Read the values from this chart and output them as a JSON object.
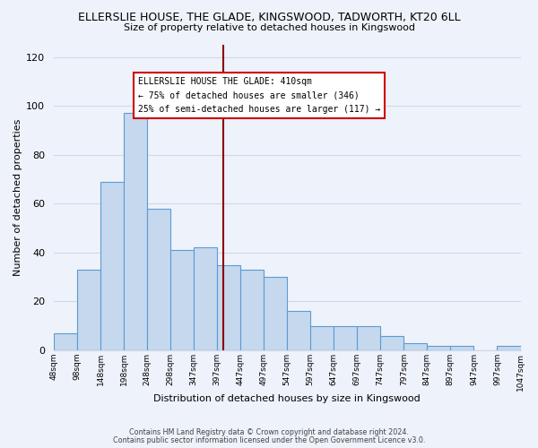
{
  "title": "ELLERSLIE HOUSE, THE GLADE, KINGSWOOD, TADWORTH, KT20 6LL",
  "subtitle": "Size of property relative to detached houses in Kingswood",
  "xlabel": "Distribution of detached houses by size in Kingswood",
  "ylabel": "Number of detached properties",
  "bar_values": [
    7,
    33,
    69,
    97,
    58,
    41,
    42,
    35,
    33,
    30,
    16,
    10,
    10,
    10,
    6,
    3,
    2,
    2,
    0,
    2
  ],
  "bin_edges": [
    48,
    98,
    148,
    198,
    248,
    298,
    347,
    397,
    447,
    497,
    547,
    597,
    647,
    697,
    747,
    797,
    847,
    897,
    947,
    997,
    1047
  ],
  "bin_labels": [
    "48sqm",
    "98sqm",
    "148sqm",
    "198sqm",
    "248sqm",
    "298sqm",
    "347sqm",
    "397sqm",
    "447sqm",
    "497sqm",
    "547sqm",
    "597sqm",
    "647sqm",
    "697sqm",
    "747sqm",
    "797sqm",
    "847sqm",
    "897sqm",
    "947sqm",
    "997sqm",
    "1047sqm"
  ],
  "bar_color": "#c5d8ed",
  "bar_edge_color": "#5b9bd5",
  "background_color": "#eef2fa",
  "grid_color": "#d0d8e8",
  "ylim": [
    0,
    125
  ],
  "yticks": [
    0,
    20,
    40,
    60,
    80,
    100,
    120
  ],
  "vline_value": 410,
  "vline_color": "#8b0000",
  "annotation_title": "ELLERSLIE HOUSE THE GLADE: 410sqm",
  "annotation_line1": "← 75% of detached houses are smaller (346)",
  "annotation_line2": "25% of semi-detached houses are larger (117) →",
  "annotation_box_facecolor": "#ffffff",
  "annotation_box_edgecolor": "#cc0000",
  "footer1": "Contains HM Land Registry data © Crown copyright and database right 2024.",
  "footer2": "Contains public sector information licensed under the Open Government Licence v3.0."
}
